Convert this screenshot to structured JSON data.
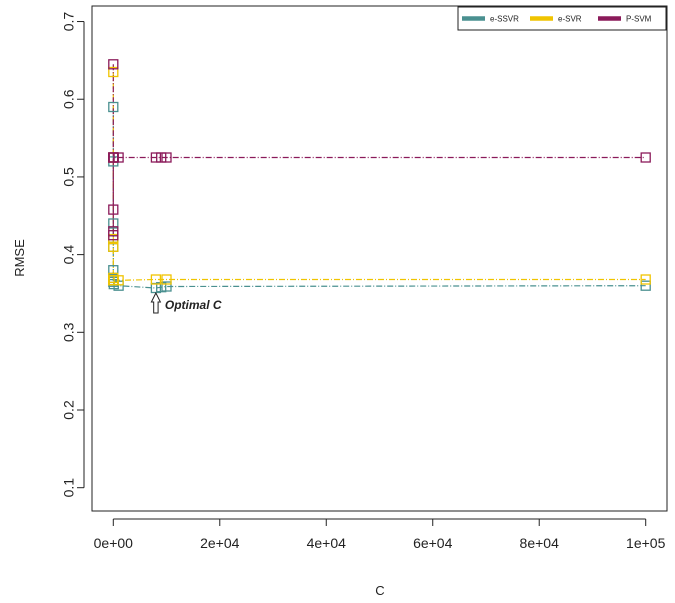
{
  "chart_data": {
    "type": "line",
    "xlabel": "C",
    "ylabel": "RMSE",
    "xlim": [
      -4000,
      104000
    ],
    "ylim": [
      0.07,
      0.72
    ],
    "x_ticks": [
      0,
      20000,
      40000,
      60000,
      80000,
      100000
    ],
    "x_tick_labels": [
      "0e+00",
      "2e+04",
      "4e+04",
      "6e+04",
      "8e+04",
      "1e+05"
    ],
    "y_ticks": [
      0.1,
      0.2,
      0.3,
      0.4,
      0.5,
      0.6,
      0.7
    ],
    "y_tick_labels": [
      "0.1",
      "0.2",
      "0.3",
      "0.4",
      "0.5",
      "0.6",
      "0.7"
    ],
    "legend_position": "top-right",
    "grid": false,
    "series": [
      {
        "name": "e-SSVR",
        "color": "#4a9090",
        "x": [
          0,
          0,
          0,
          0,
          0,
          0,
          0,
          10,
          100,
          1000,
          8000,
          9000,
          10000,
          100000
        ],
        "y": [
          0.59,
          0.52,
          0.44,
          0.42,
          0.41,
          0.38,
          0.37,
          0.365,
          0.362,
          0.36,
          0.357,
          0.358,
          0.359,
          0.36
        ]
      },
      {
        "name": "e-SVR",
        "color": "#f0c400",
        "x": [
          0,
          0,
          0,
          0,
          0,
          0,
          10,
          100,
          1000,
          8000,
          10000,
          100000
        ],
        "y": [
          0.635,
          0.525,
          0.42,
          0.41,
          0.37,
          0.367,
          0.367,
          0.367,
          0.367,
          0.368,
          0.368,
          0.368
        ],
        "segments": [
          [
            0,
            1
          ],
          [
            1,
            2
          ],
          [
            2,
            3
          ],
          [
            3,
            4
          ],
          [
            4,
            5
          ],
          [
            5,
            6
          ],
          [
            6,
            7
          ],
          [
            7,
            8
          ],
          [
            8,
            9
          ],
          [
            9,
            10
          ],
          [
            10,
            11
          ]
        ]
      },
      {
        "name": "P-SVM",
        "color": "#8b1a5a",
        "x": [
          0,
          0,
          0,
          0,
          0,
          0,
          10,
          100,
          1000,
          8000,
          9000,
          10000,
          100000
        ],
        "y": [
          0.645,
          0.525,
          0.458,
          0.43,
          0.425,
          0.525,
          0.525,
          0.525,
          0.525,
          0.525,
          0.525,
          0.525,
          0.525
        ]
      }
    ],
    "annotation": {
      "text": "Optimal C",
      "x": 8000,
      "y": 0.357
    }
  }
}
